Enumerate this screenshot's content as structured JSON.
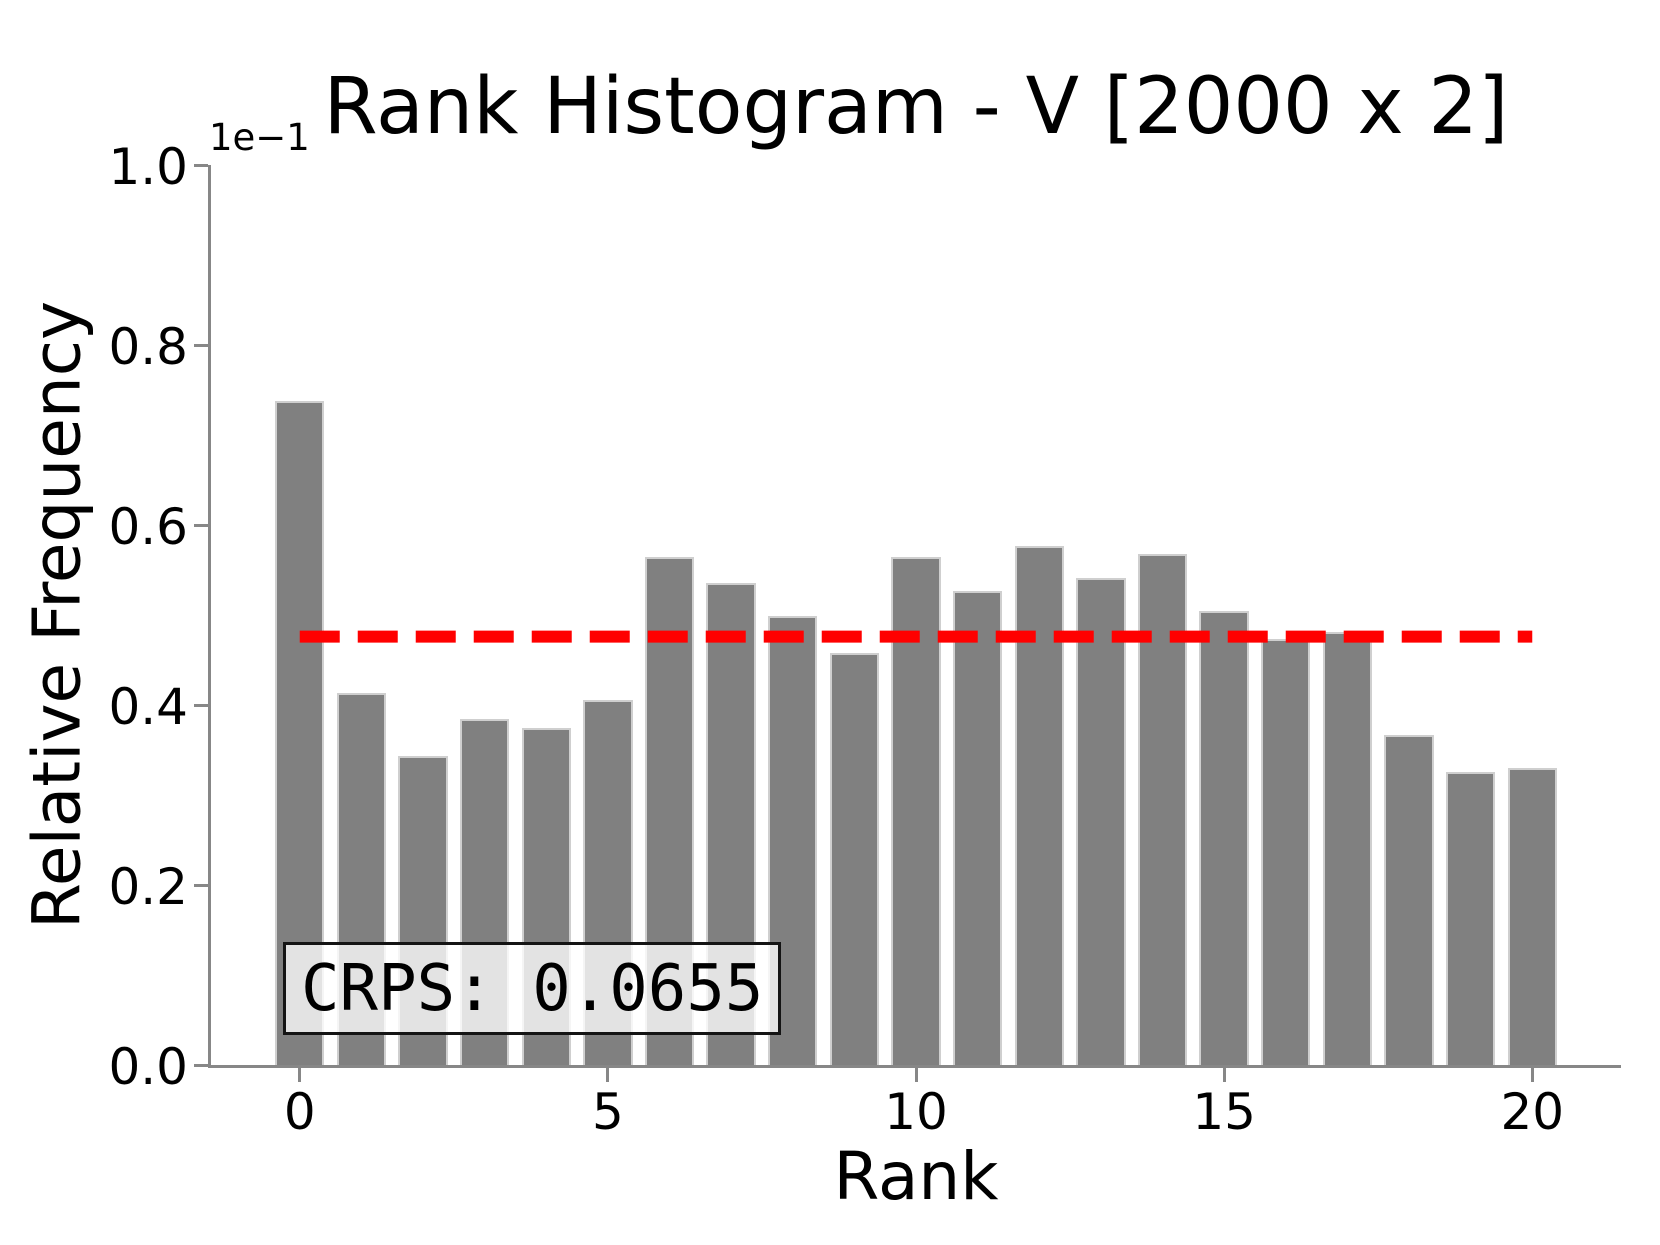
{
  "title": "Rank Histogram - V [2000 x 2]",
  "axes": {
    "xlabel": "Rank",
    "ylabel": "Relative Frequency",
    "offset_text": "1e−1",
    "x_ticks": [
      "0",
      "5",
      "10",
      "15",
      "20"
    ],
    "y_ticks": [
      "0.0",
      "0.2",
      "0.4",
      "0.6",
      "0.8",
      "1.0"
    ]
  },
  "annotation": {
    "crps_label": "CRPS: 0.0655"
  },
  "colors": {
    "bar": "#808080",
    "reference_line": "#ff0000",
    "spine": "#878787",
    "text": "#000000",
    "annotation_border": "#141414",
    "annotation_bg": "rgba(255,255,255,0.78)"
  },
  "chart_data": {
    "type": "bar",
    "title": "Rank Histogram - V [2000 x 2]",
    "xlabel": "Rank",
    "ylabel": "Relative Frequency",
    "y_scale_factor_label": "1e−1",
    "categories": [
      0,
      1,
      2,
      3,
      4,
      5,
      6,
      7,
      8,
      9,
      10,
      11,
      12,
      13,
      14,
      15,
      16,
      17,
      18,
      19,
      20
    ],
    "values": [
      0.0738,
      0.0413,
      0.0343,
      0.0385,
      0.0375,
      0.0406,
      0.0564,
      0.0536,
      0.0499,
      0.0458,
      0.0564,
      0.0527,
      0.0577,
      0.0541,
      0.0568,
      0.0504,
      0.0473,
      0.0481,
      0.0367,
      0.0326,
      0.033
    ],
    "reference_line_y": 0.0476,
    "reference_line_x_range": [
      0,
      20
    ],
    "bar_width_data_units": 0.8,
    "xlim": [
      -1.44,
      21.44
    ],
    "ylim": [
      0,
      0.1
    ],
    "x_tick_positions": [
      0,
      5,
      10,
      15,
      20
    ],
    "y_tick_positions": [
      0,
      0.02,
      0.04,
      0.06,
      0.08,
      0.1
    ],
    "grid": false,
    "legend": "none",
    "annotation": "CRPS: 0.0655"
  }
}
